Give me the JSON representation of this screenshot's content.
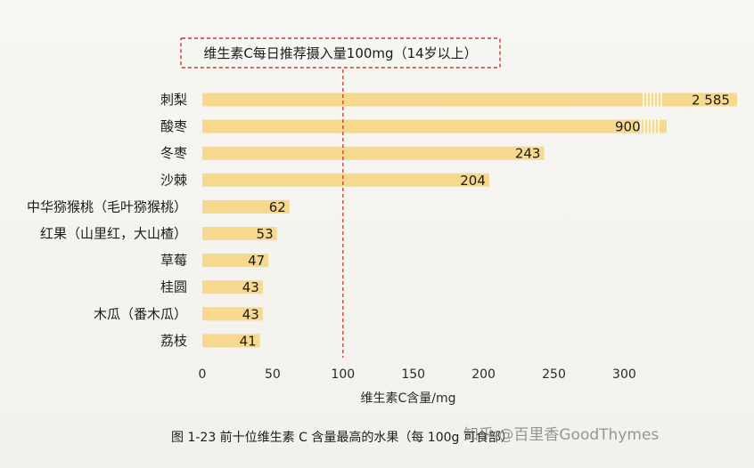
{
  "chart_data": {
    "type": "bar",
    "orientation": "horizontal",
    "categories": [
      "刺梨",
      "酸枣",
      "冬枣",
      "沙棘",
      "中华猕猴桃（毛叶猕猴桃）",
      "红果（山里红，大山楂）",
      "草莓",
      "桂圆",
      "木瓜（番木瓜）",
      "荔枝"
    ],
    "values": [
      2585,
      900,
      243,
      204,
      62,
      53,
      47,
      43,
      43,
      41
    ],
    "value_labels": [
      "2 585",
      "900",
      "243",
      "204",
      "62",
      "53",
      "47",
      "43",
      "43",
      "41"
    ],
    "axis_break_values": [
      2585,
      900
    ],
    "xlabel": "维生素C含量/mg",
    "xlim": [
      0,
      300
    ],
    "xticks": [
      0,
      50,
      100,
      150,
      200,
      250,
      300
    ],
    "reference_line": {
      "x": 100,
      "label": "维生素C每日推荐摄入量100mg（14岁以上）"
    },
    "bar_color": "#f7d98d",
    "reference_color": "#c23a35",
    "grid": false
  },
  "caption": "图 1-23   前十位维生素 C 含量最高的水果（每 100g 可食部）",
  "watermark": "知乎 @百里香GoodThymes"
}
